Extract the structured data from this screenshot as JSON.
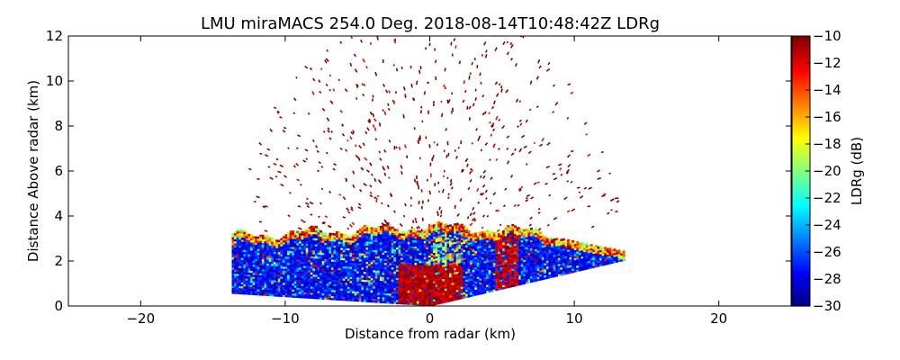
{
  "chart_data": {
    "type": "heatmap",
    "title": "LMU miraMACS 254.0 Deg. 2018-08-14T10:48:42Z  LDRg",
    "xlabel": "Distance from radar (km)",
    "ylabel": "Distance Above radar  (km)",
    "xlim": [
      -25,
      25
    ],
    "ylim": [
      0,
      12
    ],
    "xticks": [
      -20,
      -10,
      0,
      10,
      20
    ],
    "yticks": [
      0,
      2,
      4,
      6,
      8,
      10,
      12
    ],
    "scan": {
      "azimuth_deg": 254.0,
      "timestamp": "2018-08-14T10:48:42Z",
      "left_edge_x_km": -13.7,
      "left_edge_bottom_km": 0.55,
      "right_edge_x_km": 13.5,
      "right_edge_top_km": 2.4,
      "dense_layer_top_km": 3.5,
      "speckle_max_range_km": 13.8
    },
    "colorbar": {
      "label": "LDRg (dB)",
      "min": -30,
      "max": -10,
      "ticks": [
        -10,
        -12,
        -14,
        -16,
        -18,
        -20,
        -22,
        -24,
        -26,
        -28,
        -30
      ],
      "colormap": "jet"
    }
  }
}
